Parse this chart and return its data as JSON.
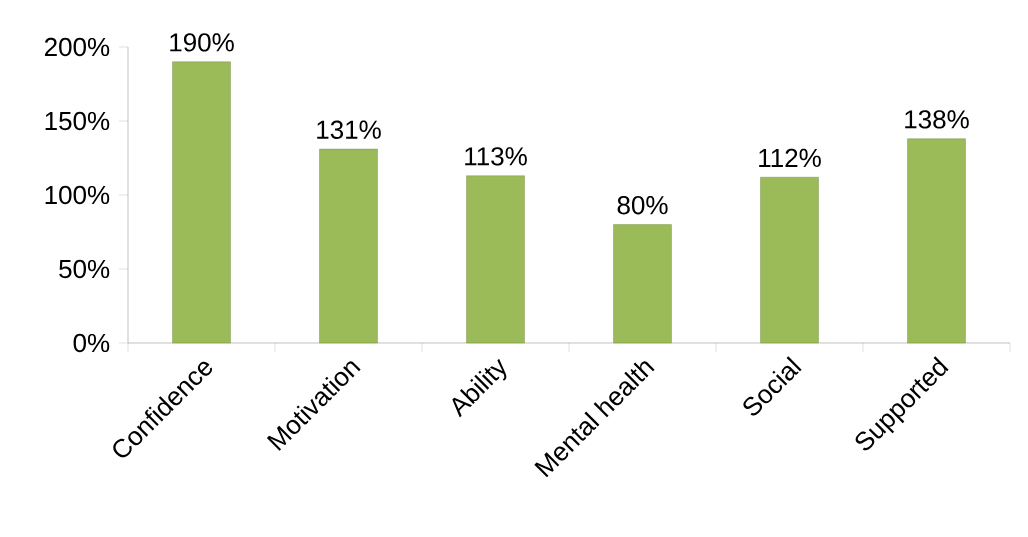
{
  "chart_data": {
    "type": "bar",
    "categories": [
      "Confidence",
      "Motivation",
      "Ability",
      "Mental health",
      "Social",
      "Supported"
    ],
    "values": [
      190,
      131,
      113,
      80,
      112,
      138
    ],
    "color": "#9bbb59",
    "value_labels": [
      "190%",
      "131%",
      "113%",
      "80%",
      "112%",
      "138%"
    ],
    "ylim": [
      0,
      200
    ],
    "yticks": [
      {
        "value": 0,
        "label": "0%"
      },
      {
        "value": 50,
        "label": "50%"
      },
      {
        "value": 100,
        "label": "100%"
      },
      {
        "value": 150,
        "label": "150%"
      },
      {
        "value": 200,
        "label": "200%"
      }
    ],
    "grid": false
  }
}
